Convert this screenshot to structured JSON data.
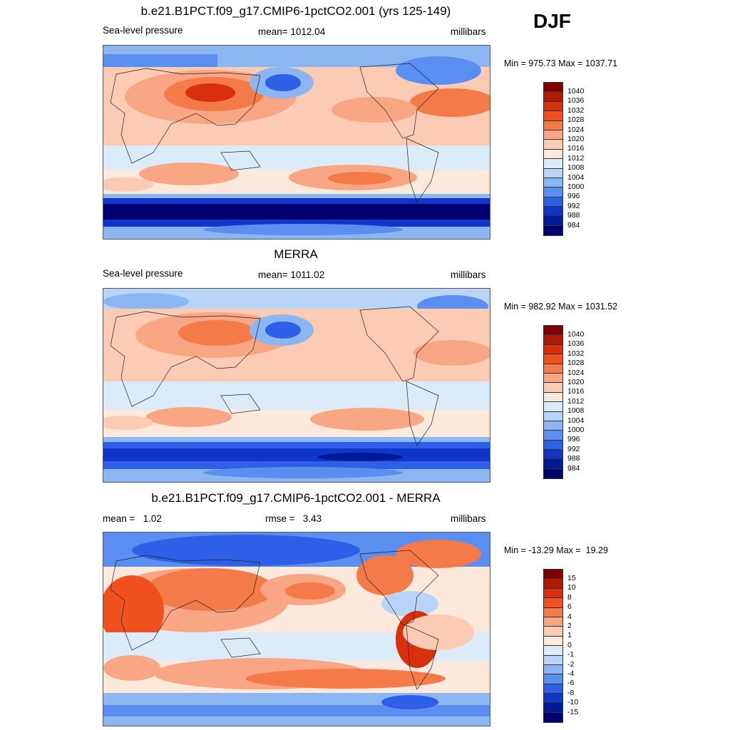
{
  "season": "DJF",
  "panels": [
    {
      "title": "b.e21.B1PCT.f09_g17.CMIP6-1pctCO2.001 (yrs 125-149)",
      "left_label": "Sea-level pressure",
      "center_label": "mean= 1012.04",
      "units": "millibars",
      "minmax": "Min = 975.73 Max = 1037.71",
      "colorbar_labels": [
        "1040",
        "1036",
        "1032",
        "1028",
        "1024",
        "1020",
        "1016",
        "1012",
        "1008",
        "1004",
        "1000",
        "996",
        "992",
        "988",
        "984"
      ]
    },
    {
      "title": "MERRA",
      "left_label": "Sea-level pressure",
      "center_label": "mean= 1011.02",
      "units": "millibars",
      "minmax": "Min = 982.92 Max = 1031.52",
      "colorbar_labels": [
        "1040",
        "1036",
        "1032",
        "1028",
        "1024",
        "1020",
        "1016",
        "1012",
        "1008",
        "1004",
        "1000",
        "996",
        "992",
        "988",
        "984"
      ]
    },
    {
      "title": "b.e21.B1PCT.f09_g17.CMIP6-1pctCO2.001 - MERRA",
      "left_label": "mean =   1.02",
      "center_label": "rmse =   3.43",
      "units": "millibars",
      "minmax": "Min = -13.29 Max =  19.29",
      "colorbar_labels": [
        "15",
        "10",
        "8",
        "6",
        "4",
        "2",
        "1",
        "0",
        "-1",
        "-2",
        "-4",
        "-6",
        "-8",
        "-10",
        "-15"
      ]
    }
  ],
  "colors": {
    "palette": [
      "#7f0000",
      "#b01a05",
      "#d8300e",
      "#f0501e",
      "#f57a4a",
      "#f9a684",
      "#fccbb4",
      "#fde9dc",
      "#dcebfa",
      "#b8d4f7",
      "#8cb6f2",
      "#5a8ef0",
      "#2d60e6",
      "#1035c8",
      "#001a96",
      "#00006e"
    ]
  }
}
